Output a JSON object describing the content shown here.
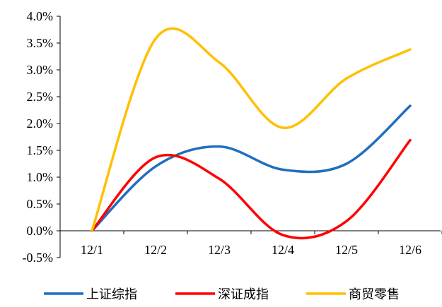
{
  "chart_data": {
    "type": "line",
    "categories": [
      "12/1",
      "12/2",
      "12/3",
      "12/4",
      "12/5",
      "12/6"
    ],
    "series": [
      {
        "name": "上证综指",
        "color": "#1F6FBF",
        "values": [
          0.0,
          1.2,
          1.57,
          1.14,
          1.25,
          2.33
        ]
      },
      {
        "name": "深证成指",
        "color": "#FF0000",
        "values": [
          0.0,
          1.37,
          0.97,
          -0.08,
          0.18,
          1.69
        ]
      },
      {
        "name": "商贸零售",
        "color": "#FFC000",
        "values": [
          0.0,
          3.58,
          3.14,
          1.92,
          2.84,
          3.38
        ]
      }
    ],
    "y_ticks": [
      "4.0%",
      "3.5%",
      "3.0%",
      "2.5%",
      "2.0%",
      "1.5%",
      "1.0%",
      "0.5%",
      "0.0%",
      "-0.5%"
    ],
    "ylim": [
      -0.5,
      4.0
    ],
    "title": "",
    "xlabel": "",
    "ylabel": "",
    "grid": false,
    "legend_position": "bottom"
  }
}
